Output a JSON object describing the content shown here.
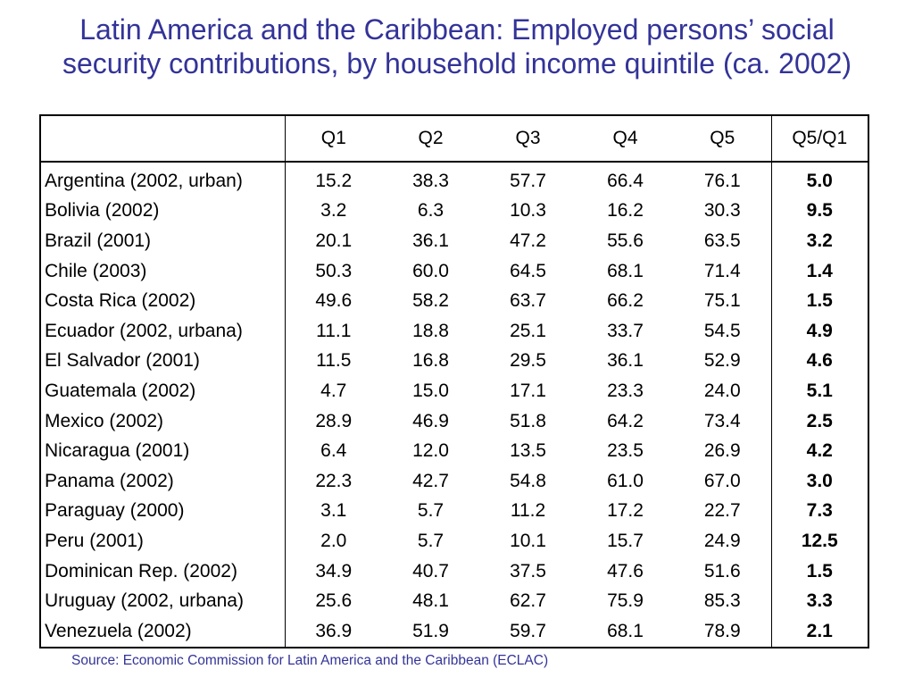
{
  "title": {
    "line1": "Latin America and the Caribbean: Employed persons’ social",
    "line2": "security contributions, by household income quintile (ca. 2002)"
  },
  "source": "Source: Economic Commission for Latin America and the Caribbean (ECLAC)",
  "chart_data": {
    "type": "table",
    "columns": [
      "",
      "Q1",
      "Q2",
      "Q3",
      "Q4",
      "Q5",
      "Q5/Q1"
    ],
    "rows": [
      {
        "label": "Argentina (2002, urban)",
        "values": [
          "15.2",
          "38.3",
          "57.7",
          "66.4",
          "76.1"
        ],
        "ratio": "5.0"
      },
      {
        "label": "Bolivia (2002)",
        "values": [
          "3.2",
          "6.3",
          "10.3",
          "16.2",
          "30.3"
        ],
        "ratio": "9.5"
      },
      {
        "label": "Brazil (2001)",
        "values": [
          "20.1",
          "36.1",
          "47.2",
          "55.6",
          "63.5"
        ],
        "ratio": "3.2"
      },
      {
        "label": "Chile (2003)",
        "values": [
          "50.3",
          "60.0",
          "64.5",
          "68.1",
          "71.4"
        ],
        "ratio": "1.4"
      },
      {
        "label": "Costa Rica (2002)",
        "values": [
          "49.6",
          "58.2",
          "63.7",
          "66.2",
          "75.1"
        ],
        "ratio": "1.5"
      },
      {
        "label": "Ecuador (2002, urbana)",
        "values": [
          "11.1",
          "18.8",
          "25.1",
          "33.7",
          "54.5"
        ],
        "ratio": "4.9"
      },
      {
        "label": "El Salvador (2001)",
        "values": [
          "11.5",
          "16.8",
          "29.5",
          "36.1",
          "52.9"
        ],
        "ratio": "4.6"
      },
      {
        "label": "Guatemala (2002)",
        "values": [
          "4.7",
          "15.0",
          "17.1",
          "23.3",
          "24.0"
        ],
        "ratio": "5.1"
      },
      {
        "label": "Mexico (2002)",
        "values": [
          "28.9",
          "46.9",
          "51.8",
          "64.2",
          "73.4"
        ],
        "ratio": "2.5"
      },
      {
        "label": "Nicaragua (2001)",
        "values": [
          "6.4",
          "12.0",
          "13.5",
          "23.5",
          "26.9"
        ],
        "ratio": "4.2"
      },
      {
        "label": "Panama (2002)",
        "values": [
          "22.3",
          "42.7",
          "54.8",
          "61.0",
          "67.0"
        ],
        "ratio": "3.0"
      },
      {
        "label": "Paraguay (2000)",
        "values": [
          "3.1",
          "5.7",
          "11.2",
          "17.2",
          "22.7"
        ],
        "ratio": "7.3"
      },
      {
        "label": "Peru (2001)",
        "values": [
          "2.0",
          "5.7",
          "10.1",
          "15.7",
          "24.9"
        ],
        "ratio": "12.5"
      },
      {
        "label": "Dominican Rep. (2002)",
        "values": [
          "34.9",
          "40.7",
          "37.5",
          "47.6",
          "51.6"
        ],
        "ratio": "1.5"
      },
      {
        "label": "Uruguay (2002, urbana)",
        "values": [
          "25.6",
          "48.1",
          "62.7",
          "75.9",
          "85.3"
        ],
        "ratio": "3.3"
      },
      {
        "label": "Venezuela (2002)",
        "values": [
          "36.9",
          "51.9",
          "59.7",
          "68.1",
          "78.9"
        ],
        "ratio": "2.1"
      }
    ]
  },
  "colors": {
    "title": "#333399",
    "source": "#333399",
    "text": "#000000",
    "border": "#000000"
  }
}
